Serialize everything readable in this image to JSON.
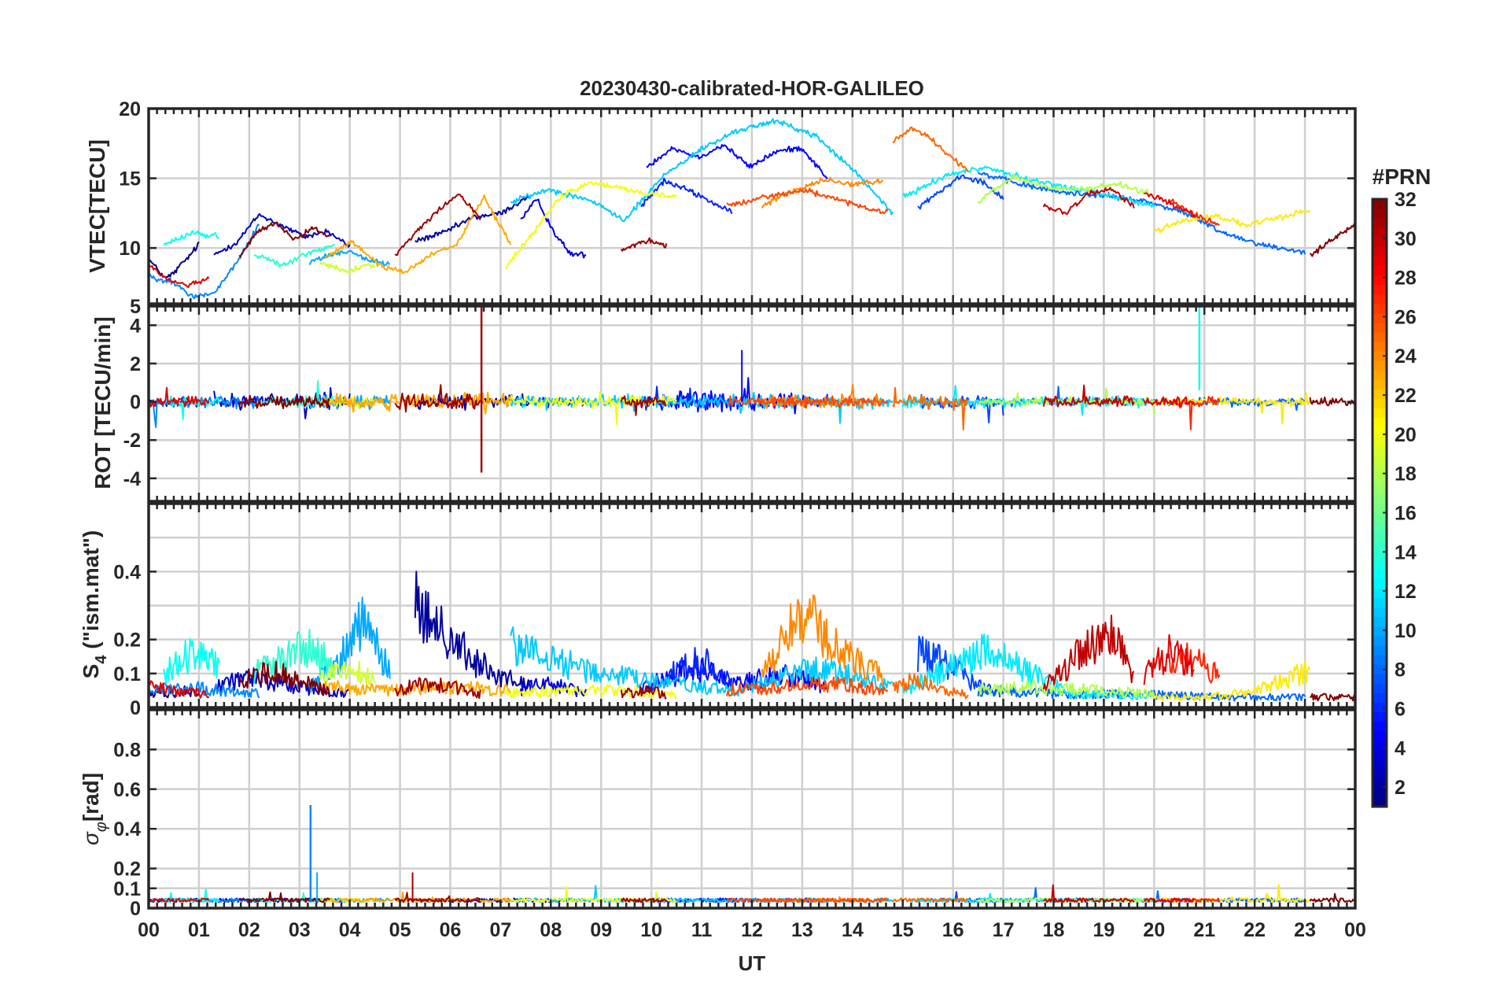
{
  "chart_data": {
    "type": "line",
    "title": "20230430-calibrated-HOR-GALILEO",
    "xlabel": "UT",
    "x_ticks": [
      "00",
      "01",
      "02",
      "03",
      "04",
      "05",
      "06",
      "07",
      "08",
      "09",
      "10",
      "11",
      "12",
      "13",
      "14",
      "15",
      "16",
      "17",
      "18",
      "19",
      "20",
      "21",
      "22",
      "23",
      "00"
    ],
    "xlim": [
      0,
      24
    ],
    "grid": true,
    "panels": [
      {
        "id": "vtec",
        "ylabel": "VTEC[TECU]",
        "ylim": [
          6,
          20
        ],
        "yticks": [
          10,
          15,
          20
        ],
        "ytick_labels": [
          "10",
          "15",
          "20"
        ]
      },
      {
        "id": "rot",
        "ylabel": "ROT [TECU/min]",
        "ylim": [
          -5.2,
          5
        ],
        "yticks": [
          -4,
          -2,
          0,
          2,
          4,
          5
        ],
        "ytick_labels": [
          "-4",
          "-2",
          "0",
          "2",
          "4",
          "5"
        ]
      },
      {
        "id": "s4",
        "ylabel_main": "S",
        "ylabel_sub": "4",
        "ylabel_rest": " (\"ism.mat\")",
        "ylim": [
          0,
          0.6
        ],
        "yticks": [
          0,
          0.1,
          0.2,
          0.4
        ],
        "ytick_labels": [
          "0",
          "0.1",
          "0.2",
          "0.4"
        ],
        "grid_values": [
          0,
          0.1,
          0.2,
          0.3,
          0.4,
          0.5,
          0.6
        ]
      },
      {
        "id": "sigma",
        "ylabel_main": "σ",
        "ylabel_sub": "φ",
        "ylabel_rest": "[rad]",
        "ylim": [
          0,
          1
        ],
        "yticks": [
          0,
          0.1,
          0.2,
          0.4,
          0.6,
          0.8
        ],
        "ytick_labels": [
          "0",
          "0.1",
          "0.2",
          "0.4",
          "0.6",
          "0.8"
        ],
        "grid_values": [
          0,
          0.1,
          0.2,
          0.4,
          0.6,
          0.8,
          1.0
        ]
      }
    ],
    "colorbar": {
      "label": "#PRN",
      "range": [
        1,
        32
      ],
      "ticks": [
        2,
        4,
        6,
        8,
        10,
        12,
        14,
        16,
        18,
        20,
        22,
        24,
        26,
        28,
        30,
        32
      ],
      "colormap": "jet"
    },
    "notes": "Approximate reconstruction of per-satellite traces; values estimated from the figure.",
    "series": [
      {
        "prn": 1,
        "start": 0.0,
        "end": 1.0,
        "vtec": [
          9.2,
          8.5,
          7.8,
          8.2,
          8.9,
          9.5,
          10.3
        ],
        "s4": [
          0.04,
          0.05,
          0.04,
          0.05,
          0.04
        ],
        "rot_amp": 0.4
      },
      {
        "prn": 3,
        "start": 1.3,
        "end": 4.0,
        "vtec": [
          9.5,
          10.4,
          12.4,
          11.6,
          10.8,
          11.2,
          10.1
        ],
        "s4": [
          0.06,
          0.09,
          0.07,
          0.05,
          0.04
        ],
        "rot_amp": 0.6
      },
      {
        "prn": 2,
        "start": 5.3,
        "end": 7.6,
        "vtec": [
          10.5,
          11.1,
          12.2,
          12.5,
          13.8
        ],
        "s4": [
          0.3,
          0.22,
          0.14,
          0.09,
          0.06
        ],
        "rot_amp": 0.5
      },
      {
        "prn": 4,
        "start": 7.4,
        "end": 8.7,
        "vtec": [
          12.0,
          13.5,
          11.2,
          9.6,
          9.5
        ],
        "s4": [
          0.05,
          0.07,
          0.06,
          0.04
        ],
        "rot_amp": 0.4
      },
      {
        "prn": 5,
        "start": 9.9,
        "end": 13.5,
        "vtec": [
          15.8,
          17.2,
          16.5,
          17.4,
          15.8,
          16.9,
          17.2,
          15.0
        ],
        "s4": [
          0.05,
          0.12,
          0.07,
          0.1,
          0.06
        ],
        "rot_amp": 0.7
      },
      {
        "prn": 6,
        "start": 9.8,
        "end": 11.6,
        "vtec": [
          13.0,
          14.8,
          14.2,
          13.4,
          12.5
        ],
        "s4": [
          0.05,
          0.1,
          0.14,
          0.08
        ],
        "rot_amp": 0.5
      },
      {
        "prn": 7,
        "start": 15.3,
        "end": 17.0,
        "vtec": [
          12.9,
          14.0,
          15.2,
          14.8,
          13.6
        ],
        "s4": [
          0.16,
          0.13,
          0.07,
          0.04
        ],
        "rot_amp": 0.5
      },
      {
        "prn": 8,
        "start": 16.5,
        "end": 23.0,
        "vtec": [
          15.4,
          14.6,
          14.0,
          13.8,
          13.4,
          12.6,
          11.1,
          10.2,
          9.7
        ],
        "s4": [
          0.05,
          0.04,
          0.04,
          0.03,
          0.03
        ],
        "rot_amp": 0.3
      },
      {
        "prn": 9,
        "start": 0.0,
        "end": 2.2,
        "vtec": [
          8.0,
          7.6,
          6.5,
          6.8,
          9.0,
          11.7
        ],
        "s4": [
          0.05,
          0.06,
          0.05,
          0.04
        ],
        "rot_amp": 0.5
      },
      {
        "prn": 10,
        "start": 3.2,
        "end": 4.8,
        "vtec": [
          9.0,
          9.5,
          9.8,
          9.1,
          8.8
        ],
        "s4": [
          0.06,
          0.12,
          0.27,
          0.1
        ],
        "rot_amp": 0.5
      },
      {
        "prn": 11,
        "start": 7.2,
        "end": 14.8,
        "vtec": [
          13.3,
          14.2,
          13.5,
          12.0,
          15.2,
          17.1,
          18.5,
          19.1,
          18.0,
          15.5,
          12.5
        ],
        "s4": [
          0.18,
          0.11,
          0.07,
          0.05,
          0.12,
          0.06
        ],
        "rot_amp": 0.5
      },
      {
        "prn": 12,
        "start": 15.0,
        "end": 20.0,
        "vtec": [
          13.6,
          15.2,
          15.8,
          14.9,
          14.3,
          13.7,
          13.0
        ],
        "s4": [
          0.05,
          0.17,
          0.04,
          0.03
        ],
        "rot_amp": 0.4
      },
      {
        "prn": 13,
        "start": 0.3,
        "end": 1.4,
        "vtec": [
          10.2,
          11.1,
          10.8
        ],
        "s4": [
          0.1,
          0.16,
          0.13
        ],
        "rot_amp": 0.4
      },
      {
        "prn": 14,
        "start": 2.1,
        "end": 3.7,
        "vtec": [
          9.6,
          8.8,
          9.6,
          10.2
        ],
        "s4": [
          0.1,
          0.14,
          0.18,
          0.12
        ],
        "rot_amp": 0.4
      },
      {
        "prn": 18,
        "start": 16.5,
        "end": 20.0,
        "vtec": [
          13.4,
          15.1,
          14.3,
          14.2,
          14.6,
          13.8
        ],
        "s4": [
          0.05,
          0.06,
          0.05,
          0.04
        ],
        "rot_amp": 0.3
      },
      {
        "prn": 20,
        "start": 7.1,
        "end": 10.5,
        "vtec": [
          8.6,
          11.2,
          13.8,
          14.7,
          14.3,
          13.9,
          13.7
        ],
        "s4": [
          0.04,
          0.05,
          0.05,
          0.04
        ],
        "rot_amp": 0.4
      },
      {
        "prn": 21,
        "start": 20.0,
        "end": 23.1,
        "vtec": [
          11.2,
          12.0,
          12.3,
          11.6,
          12.2,
          12.7
        ],
        "s4": [
          0.03,
          0.03,
          0.05,
          0.11
        ],
        "rot_amp": 0.3
      },
      {
        "prn": 19,
        "start": 3.4,
        "end": 4.5,
        "vtec": [
          9.0,
          8.3,
          8.9
        ],
        "s4": [
          0.09,
          0.12,
          0.08
        ],
        "rot_amp": 0.4
      },
      {
        "prn": 24,
        "start": 12.2,
        "end": 14.6,
        "vtec": [
          13.0,
          14.1,
          14.9,
          14.6,
          14.8
        ],
        "s4": [
          0.1,
          0.28,
          0.16,
          0.09
        ],
        "rot_amp": 0.5
      },
      {
        "prn": 25,
        "start": 14.8,
        "end": 16.3,
        "vtec": [
          17.6,
          18.6,
          17.9,
          16.6,
          15.6
        ],
        "s4": [
          0.06,
          0.08,
          0.05,
          0.04
        ],
        "rot_amp": 0.5
      },
      {
        "prn": 26,
        "start": 11.5,
        "end": 14.7,
        "vtec": [
          13.0,
          13.5,
          13.9,
          14.1,
          13.6,
          12.9,
          12.5
        ],
        "s4": [
          0.05,
          0.06,
          0.07,
          0.05
        ],
        "rot_amp": 0.4
      },
      {
        "prn": 27,
        "start": 20.3,
        "end": 21.3,
        "vtec": [
          13.5,
          12.4,
          11.6
        ],
        "s4": [
          0.12,
          0.15,
          0.09
        ],
        "rot_amp": 0.4
      },
      {
        "prn": 23,
        "start": 3.5,
        "end": 7.2,
        "vtec": [
          9.2,
          10.5,
          8.9,
          8.2,
          9.5,
          10.3,
          13.7,
          10.2
        ],
        "s4": [
          0.06,
          0.05,
          0.06,
          0.05
        ],
        "rot_amp": 0.6
      },
      {
        "prn": 29,
        "start": 0.0,
        "end": 1.2,
        "vtec": [
          8.8,
          7.7,
          7.3,
          7.9
        ],
        "s4": [
          0.06,
          0.05,
          0.04
        ],
        "rot_amp": 0.4
      },
      {
        "prn": 29,
        "start": 19.8,
        "end": 20.8,
        "vtec": [
          14.0,
          13.2,
          12.3
        ],
        "s4": [
          0.1,
          0.16,
          0.12
        ],
        "rot_amp": 0.4
      },
      {
        "prn": 30,
        "start": 17.8,
        "end": 19.6,
        "vtec": [
          13.0,
          12.5,
          13.9,
          14.2,
          13.0
        ],
        "s4": [
          0.07,
          0.12,
          0.18,
          0.21,
          0.1
        ],
        "rot_amp": 0.4
      },
      {
        "prn": 31,
        "start": 4.9,
        "end": 6.6,
        "vtec": [
          9.5,
          11.2,
          12.7,
          13.9,
          12.1
        ],
        "s4": [
          0.05,
          0.07,
          0.06,
          0.04
        ],
        "rot_amp": 0.6
      },
      {
        "prn": 32,
        "start": 1.8,
        "end": 3.6,
        "vtec": [
          9.4,
          11.1,
          11.8,
          10.6,
          11.4,
          10.8
        ],
        "s4": [
          0.07,
          0.11,
          0.08,
          0.05
        ],
        "rot_amp": 0.5
      },
      {
        "prn": 31,
        "start": 9.4,
        "end": 10.3,
        "vtec": [
          9.8,
          10.5,
          10.2
        ],
        "s4": [
          0.04,
          0.05,
          0.04
        ],
        "rot_amp": 0.4
      },
      {
        "prn": 32,
        "start": 23.1,
        "end": 24.0,
        "vtec": [
          9.5,
          10.2,
          11.0,
          11.8
        ],
        "s4": [
          0.03,
          0.03,
          0.03
        ],
        "rot_amp": 0.3
      }
    ]
  }
}
